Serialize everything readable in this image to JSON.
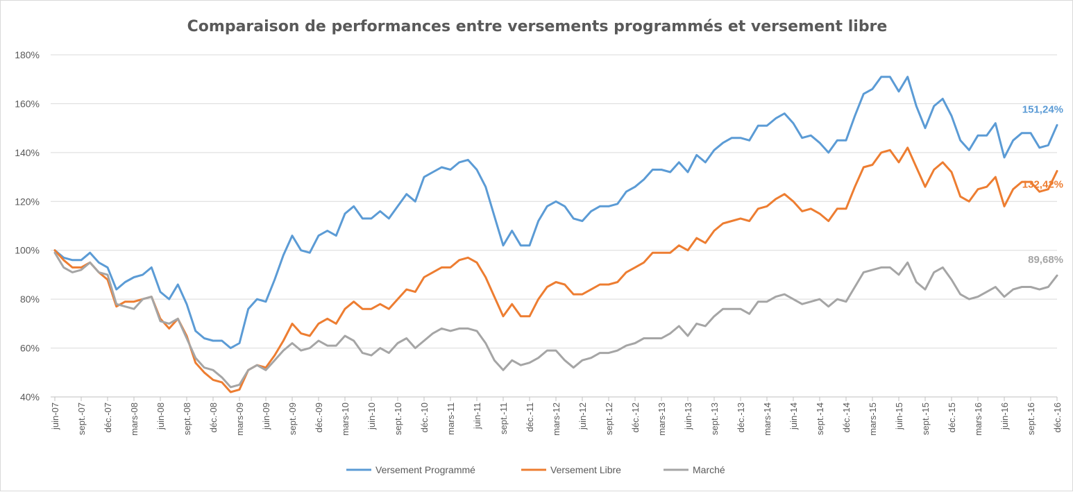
{
  "chart_data": {
    "type": "line",
    "title": "Comparaison de performances entre  versements programmés et versement libre",
    "xlabel": "",
    "ylabel": "",
    "ylim": [
      40,
      180
    ],
    "y_ticks": [
      "40%",
      "60%",
      "80%",
      "100%",
      "120%",
      "140%",
      "160%",
      "180%"
    ],
    "grid": true,
    "legend_position": "bottom",
    "x_tick_labels": [
      "juin-07",
      "sept.-07",
      "déc.-07",
      "mars-08",
      "juin-08",
      "sept.-08",
      "déc.-08",
      "mars-09",
      "juin-09",
      "sept.-09",
      "déc.-09",
      "mars-10",
      "juin-10",
      "sept.-10",
      "déc.-10",
      "mars-11",
      "juin-11",
      "sept.-11",
      "déc.-11",
      "mars-12",
      "juin-12",
      "sept.-12",
      "déc.-12",
      "mars-13",
      "juin-13",
      "sept.-13",
      "déc.-13",
      "mars-14",
      "juin-14",
      "sept.-14",
      "déc.-14",
      "mars-15",
      "juin-15",
      "sept.-15",
      "déc.-15",
      "mars-16",
      "juin-16",
      "sept.-16",
      "déc.-16"
    ],
    "series": [
      {
        "name": "Versement Programmé",
        "color": "#5b9bd5",
        "end_label": "151,24%",
        "values": [
          100,
          97,
          96,
          96,
          99,
          95,
          93,
          84,
          87,
          89,
          90,
          93,
          83,
          80,
          86,
          78,
          67,
          64,
          63,
          63,
          60,
          62,
          76,
          80,
          79,
          88,
          98,
          106,
          100,
          99,
          106,
          108,
          106,
          115,
          118,
          113,
          113,
          116,
          113,
          118,
          123,
          120,
          130,
          132,
          134,
          133,
          136,
          137,
          133,
          126,
          114,
          102,
          108,
          102,
          102,
          112,
          118,
          120,
          118,
          113,
          112,
          116,
          118,
          118,
          119,
          124,
          126,
          129,
          133,
          133,
          132,
          136,
          132,
          139,
          136,
          141,
          144,
          146,
          146,
          145,
          151,
          151,
          154,
          156,
          152,
          146,
          147,
          144,
          140,
          145,
          145,
          155,
          164,
          166,
          171,
          171,
          165,
          171,
          159,
          150,
          159,
          162,
          155,
          145,
          141,
          147,
          147,
          152,
          138,
          145,
          148,
          148,
          142,
          143,
          151.24
        ]
      },
      {
        "name": "Versement Libre",
        "color": "#ed7d31",
        "end_label": "132,42%",
        "values": [
          100,
          96,
          93,
          93,
          95,
          91,
          88,
          77,
          79,
          79,
          80,
          81,
          72,
          68,
          72,
          65,
          54,
          50,
          47,
          46,
          42,
          43,
          51,
          53,
          52,
          57,
          63,
          70,
          66,
          65,
          70,
          72,
          70,
          76,
          79,
          76,
          76,
          78,
          76,
          80,
          84,
          83,
          89,
          91,
          93,
          93,
          96,
          97,
          95,
          89,
          81,
          73,
          78,
          73,
          73,
          80,
          85,
          87,
          86,
          82,
          82,
          84,
          86,
          86,
          87,
          91,
          93,
          95,
          99,
          99,
          99,
          102,
          100,
          105,
          103,
          108,
          111,
          112,
          113,
          112,
          117,
          118,
          121,
          123,
          120,
          116,
          117,
          115,
          112,
          117,
          117,
          126,
          134,
          135,
          140,
          141,
          136,
          142,
          134,
          126,
          133,
          136,
          132,
          122,
          120,
          125,
          126,
          130,
          118,
          125,
          128,
          128,
          124,
          125,
          132.42
        ]
      },
      {
        "name": "Marché",
        "color": "#a5a5a5",
        "end_label": "89,68%",
        "values": [
          99,
          93,
          91,
          92,
          95,
          91,
          90,
          78,
          77,
          76,
          80,
          81,
          71,
          70,
          72,
          64,
          56,
          52,
          51,
          48,
          44,
          45,
          51,
          53,
          51,
          55,
          59,
          62,
          59,
          60,
          63,
          61,
          61,
          65,
          63,
          58,
          57,
          60,
          58,
          62,
          64,
          60,
          63,
          66,
          68,
          67,
          68,
          68,
          67,
          62,
          55,
          51,
          55,
          53,
          54,
          56,
          59,
          59,
          55,
          52,
          55,
          56,
          58,
          58,
          59,
          61,
          62,
          64,
          64,
          64,
          66,
          69,
          65,
          70,
          69,
          73,
          76,
          76,
          76,
          74,
          79,
          79,
          81,
          82,
          80,
          78,
          79,
          80,
          77,
          80,
          79,
          85,
          91,
          92,
          93,
          93,
          90,
          95,
          87,
          84,
          91,
          93,
          88,
          82,
          80,
          81,
          83,
          85,
          81,
          84,
          85,
          85,
          84,
          85,
          89.68
        ]
      }
    ]
  }
}
